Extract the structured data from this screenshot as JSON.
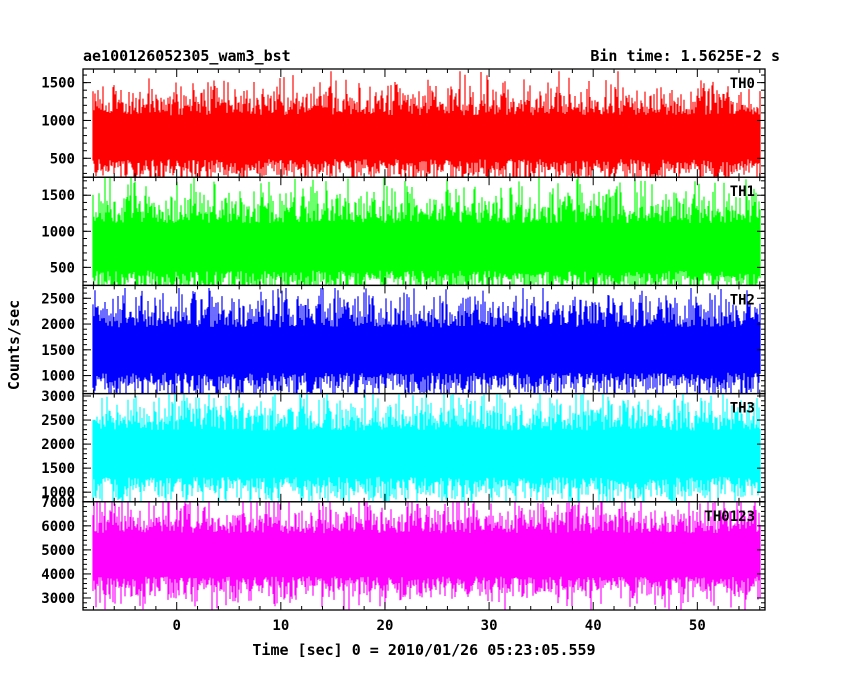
{
  "header": {
    "title": "ae100126052305_wam3_bst",
    "bin_time": "Bin time: 1.5625E-2 s"
  },
  "chart_data": {
    "type": "line",
    "title": "ae100126052305_wam3_bst",
    "xlabel": "Time [sec] 0 = 2010/01/26 05:23:05.559",
    "ylabel": "Counts/sec",
    "xlim": [
      -9,
      56.5
    ],
    "data_x_range": [
      -8,
      56
    ],
    "x_ticks": [
      0,
      10,
      20,
      30,
      40,
      50
    ],
    "bin_time_s": 0.015625,
    "grid": false,
    "panels": [
      {
        "name": "TH0",
        "color": "#ff0000",
        "ylim": [
          250,
          1680
        ],
        "y_ticks": [
          500,
          1000,
          1500
        ],
        "series": {
          "name": "TH0",
          "mean": 750,
          "low": 200,
          "high": 1650
        }
      },
      {
        "name": "TH1",
        "color": "#00ff00",
        "ylim": [
          250,
          1750
        ],
        "y_ticks": [
          500,
          1000,
          1500
        ],
        "series": {
          "name": "TH1",
          "mean": 750,
          "low": 150,
          "high": 1800
        }
      },
      {
        "name": "TH2",
        "color": "#0000ff",
        "ylim": [
          650,
          2750
        ],
        "y_ticks": [
          1000,
          1500,
          2000,
          2500
        ],
        "series": {
          "name": "TH2",
          "mean": 1450,
          "low": 500,
          "high": 2700
        }
      },
      {
        "name": "TH3",
        "color": "#00ffff",
        "ylim": [
          800,
          3050
        ],
        "y_ticks": [
          1000,
          1500,
          2000,
          2500,
          3000
        ],
        "series": {
          "name": "TH3",
          "mean": 1750,
          "low": 700,
          "high": 3100
        }
      },
      {
        "name": "TH0123",
        "color": "#ff00ff",
        "ylim": [
          2500,
          7000
        ],
        "y_ticks": [
          3000,
          4000,
          5000,
          6000,
          7000
        ],
        "series": {
          "name": "TH0123",
          "mean": 4700,
          "low": 2500,
          "high": 7000
        }
      }
    ]
  }
}
